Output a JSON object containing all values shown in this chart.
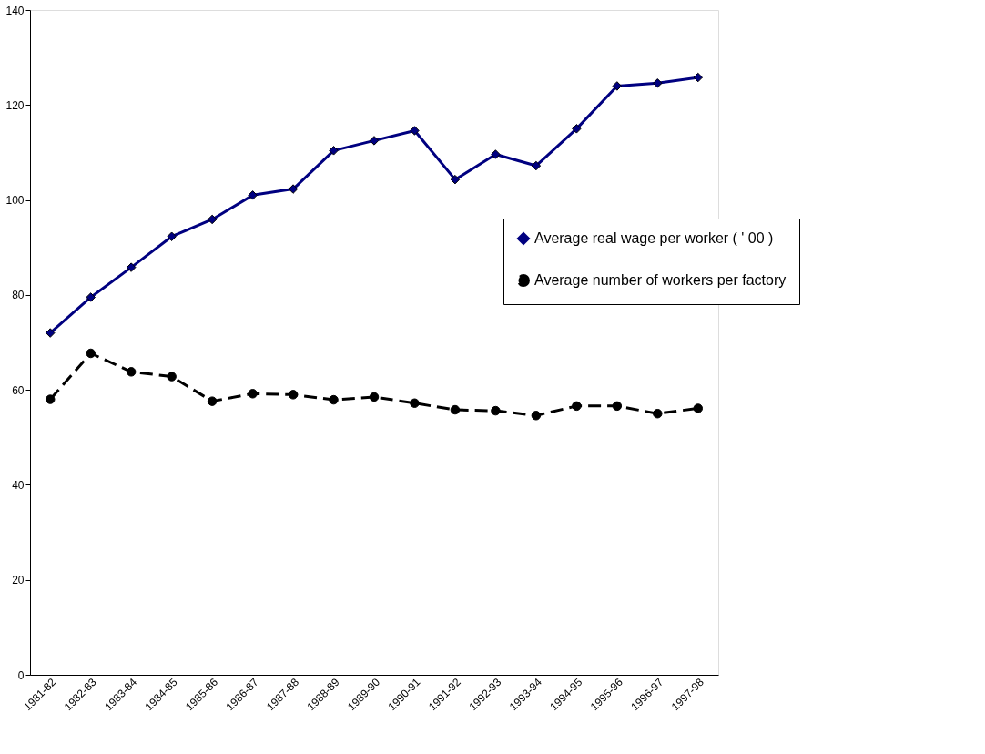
{
  "chart_data": {
    "type": "line",
    "categories": [
      "1981-82",
      "1982-83",
      "1983-84",
      "1984-85",
      "1985-86",
      "1986-87",
      "1987-88",
      "1988-89",
      "1989-90",
      "1990-91",
      "1991-92",
      "1992-93",
      "1993-94",
      "1994-95",
      "1995-96",
      "1996-97",
      "1997-98"
    ],
    "series": [
      {
        "name": "Average real wage per worker ( ' 00 )",
        "color": "#000080",
        "marker": "diamond",
        "line_style": "solid",
        "values": [
          72,
          79.5,
          85.8,
          92.3,
          95.9,
          101,
          102.3,
          110.4,
          112.5,
          114.6,
          104.3,
          109.6,
          107.2,
          115,
          124,
          124.6,
          125.8
        ]
      },
      {
        "name": "Average number of workers per factory",
        "color": "#000000",
        "marker": "circle",
        "line_style": "dashed",
        "values": [
          58,
          67.7,
          63.8,
          62.8,
          57.6,
          59.2,
          59,
          57.9,
          58.5,
          57.2,
          55.8,
          55.6,
          54.6,
          56.6,
          56.6,
          55,
          56.1
        ]
      }
    ],
    "ylim": [
      0,
      140
    ],
    "yticks": [
      0,
      20,
      40,
      60,
      80,
      100,
      120,
      140
    ],
    "grid": false,
    "legend": "right"
  }
}
